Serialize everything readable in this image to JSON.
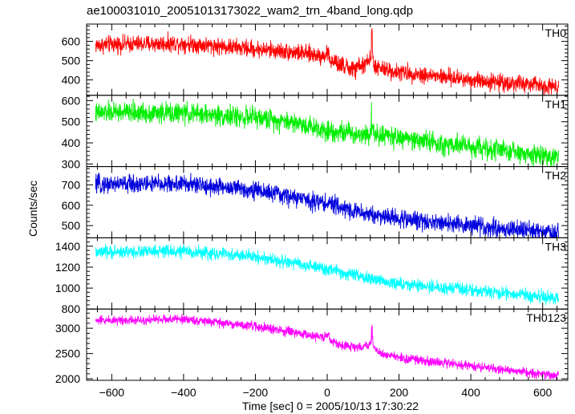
{
  "chart_data": {
    "type": "line",
    "title": "ae100031010_20051013173022_wam2_trn_4band_long.qdp",
    "xlabel": "Time [sec] 0 = 2005/10/13 17:30:22",
    "ylabel": "Counts/sec",
    "xlim": [
      -670,
      670
    ],
    "x_ticks": [
      -600,
      -400,
      -200,
      0,
      200,
      400,
      600
    ],
    "x_tick_labels": [
      "−600",
      "−400",
      "−200",
      "0",
      "200",
      "400",
      "600"
    ],
    "x_range": [
      -645,
      645
    ],
    "grid": false,
    "panels": [
      {
        "name": "TH0",
        "color": "#ff0000",
        "ylim": [
          320,
          690
        ],
        "y_ticks": [
          400,
          500,
          600
        ],
        "noise": 22,
        "x": [
          -645,
          -600,
          -400,
          -200,
          -100,
          -10,
          0,
          10,
          40,
          80,
          110,
          120,
          125,
          130,
          140,
          200,
          400,
          645
        ],
        "y": [
          580,
          585,
          590,
          560,
          545,
          525,
          540,
          500,
          470,
          455,
          490,
          510,
          560,
          480,
          460,
          440,
          400,
          365
        ],
        "spikes": [
          {
            "x": 3,
            "y": 595
          },
          {
            "x": 124,
            "y": 675
          }
        ]
      },
      {
        "name": "TH1",
        "color": "#00ee00",
        "ylim": [
          288,
          625
        ],
        "y_ticks": [
          300,
          400,
          500,
          600
        ],
        "noise": 24,
        "x": [
          -645,
          -600,
          -400,
          -200,
          -100,
          0,
          100,
          120,
          125,
          130,
          200,
          400,
          645
        ],
        "y": [
          540,
          545,
          540,
          520,
          500,
          460,
          440,
          450,
          480,
          445,
          425,
          380,
          330
        ],
        "spikes": [
          {
            "x": 124,
            "y": 610
          }
        ]
      },
      {
        "name": "TH2",
        "color": "#0000dd",
        "ylim": [
          440,
          790
        ],
        "y_ticks": [
          500,
          600,
          700
        ],
        "noise": 22,
        "x": [
          -645,
          -600,
          -400,
          -200,
          -100,
          0,
          100,
          200,
          400,
          645
        ],
        "y": [
          700,
          705,
          705,
          675,
          640,
          610,
          560,
          535,
          500,
          460
        ]
      },
      {
        "name": "TH3",
        "color": "#00ffff",
        "ylim": [
          800,
          1480
        ],
        "y_ticks": [
          800,
          1000,
          1200,
          1400
        ],
        "noise": 30,
        "x": [
          -645,
          -600,
          -400,
          -200,
          -100,
          0,
          100,
          200,
          400,
          645
        ],
        "y": [
          1335,
          1345,
          1350,
          1300,
          1240,
          1180,
          1100,
          1040,
          980,
          900
        ]
      },
      {
        "name": "TH0123",
        "color": "#ff00ff",
        "ylim": [
          1970,
          3380
        ],
        "y_ticks": [
          2000,
          2500,
          3000
        ],
        "noise": 45,
        "x": [
          -645,
          -600,
          -400,
          -200,
          -100,
          -10,
          0,
          10,
          40,
          100,
          120,
          125,
          130,
          150,
          200,
          400,
          645
        ],
        "y": [
          3150,
          3160,
          3180,
          3040,
          2920,
          2820,
          2870,
          2750,
          2660,
          2620,
          2700,
          2830,
          2620,
          2500,
          2420,
          2250,
          2070
        ],
        "spikes": [
          {
            "x": 124,
            "y": 3080
          }
        ]
      }
    ]
  }
}
